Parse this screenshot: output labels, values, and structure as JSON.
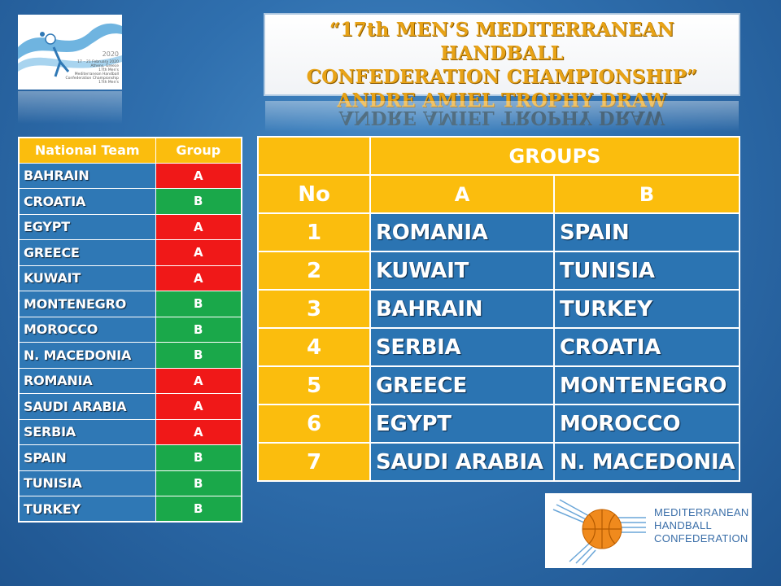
{
  "title": {
    "line1": "“17th MEN’S MEDITERRANEAN HANDBALL",
    "line2": "CONFEDERATION CHAMPIONSHIP”",
    "line3": "ANDRE AMIEL TROPHY DRAW"
  },
  "event_logo": {
    "year": "2020",
    "lines": [
      "17 – 21 February 2020",
      "Athens, Greece",
      "17th Men's",
      "Mediterranean Handball",
      "Confederation Championship",
      "17th Men's"
    ]
  },
  "team_table": {
    "headers": [
      "National Team",
      "Group"
    ],
    "rows": [
      {
        "team": "BAHRAIN",
        "group": "A"
      },
      {
        "team": "CROATIA",
        "group": "B"
      },
      {
        "team": "EGYPT",
        "group": "A"
      },
      {
        "team": "GREECE",
        "group": "A"
      },
      {
        "team": "KUWAIT",
        "group": "A"
      },
      {
        "team": "MONTENEGRO",
        "group": "B"
      },
      {
        "team": "MOROCCO",
        "group": "B"
      },
      {
        "team": "N. MACEDONIA",
        "group": "B"
      },
      {
        "team": "ROMANIA",
        "group": "A"
      },
      {
        "team": "SAUDI ARABIA",
        "group": "A"
      },
      {
        "team": "SERBIA",
        "group": "A"
      },
      {
        "team": "SPAIN",
        "group": "B"
      },
      {
        "team": "TUNISIA",
        "group": "B"
      },
      {
        "team": "TURKEY",
        "group": "B"
      }
    ]
  },
  "groups_table": {
    "groups_label": "GROUPS",
    "no_label": "No",
    "group_a_label": "A",
    "group_b_label": "B",
    "rows": [
      {
        "no": "1",
        "a": "ROMANIA",
        "b": "SPAIN"
      },
      {
        "no": "2",
        "a": "KUWAIT",
        "b": "TUNISIA"
      },
      {
        "no": "3",
        "a": "BAHRAIN",
        "b": "TURKEY"
      },
      {
        "no": "4",
        "a": "SERBIA",
        "b": "CROATIA"
      },
      {
        "no": "5",
        "a": "GREECE",
        "b": "MONTENEGRO"
      },
      {
        "no": "6",
        "a": "EGYPT",
        "b": "MOROCCO"
      },
      {
        "no": "7",
        "a": "SAUDI ARABIA",
        "b": "N. MACEDONIA"
      }
    ]
  },
  "mhc_logo": {
    "line1": "MEDITERRANEAN",
    "line2": "HANDBALL",
    "line3": "CONFEDERATION",
    "icon": "handball-ball-icon"
  },
  "colors": {
    "header_yellow": "#fbbd0d",
    "group_a_red": "#f01818",
    "group_b_green": "#1aa84a",
    "cell_blue": "#2b74b2",
    "title_gold": "#e8a317"
  }
}
